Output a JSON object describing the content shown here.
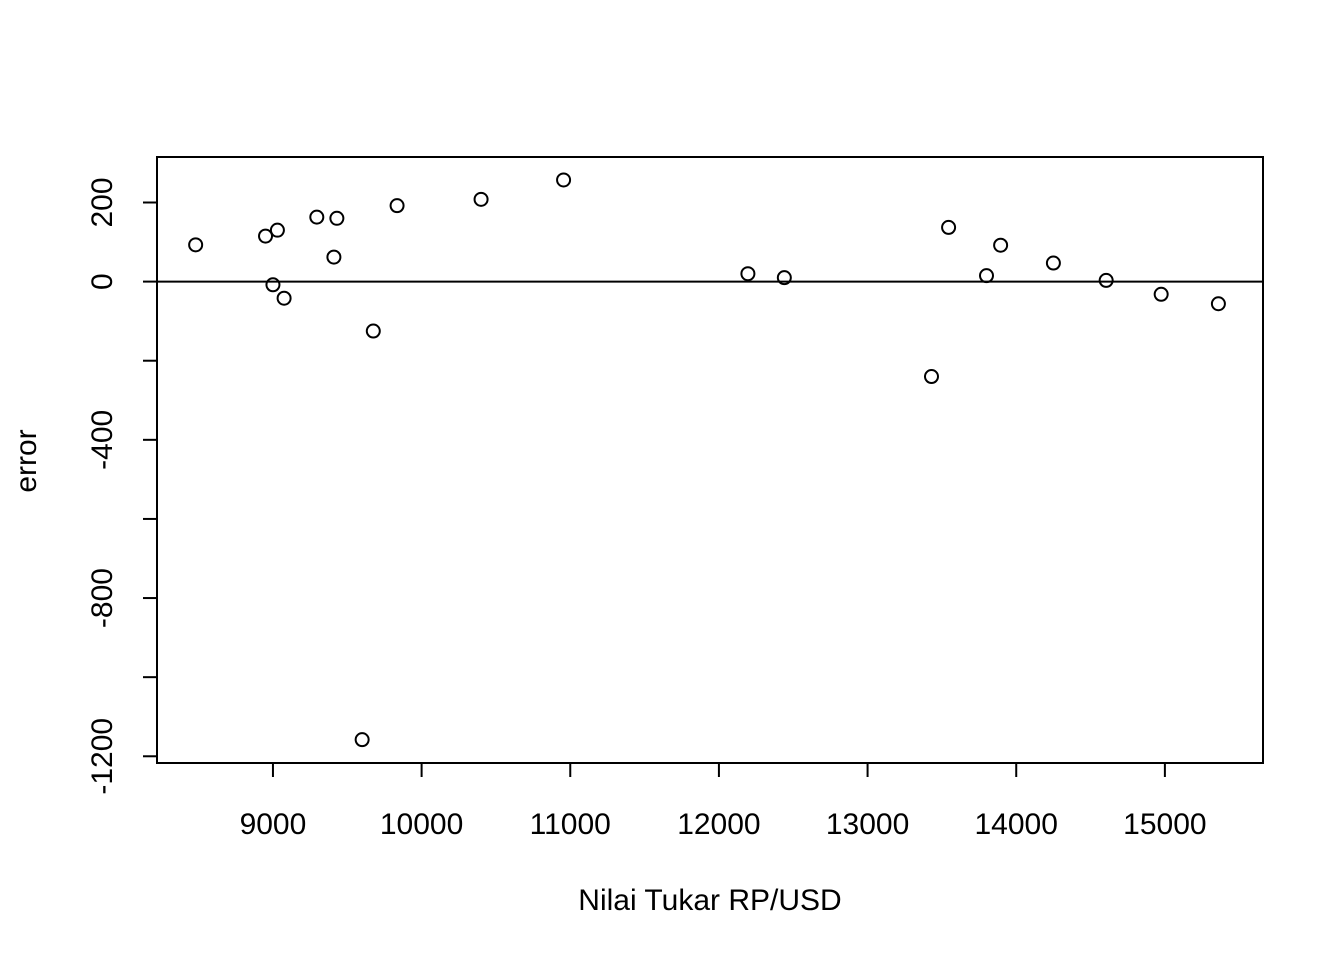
{
  "chart_data": {
    "type": "scatter",
    "title": "",
    "xlabel": "Nilai Tukar RP/USD",
    "ylabel": "error",
    "xlim": [
      8220,
      15660
    ],
    "ylim": [
      -1217,
      315
    ],
    "x_ticks": [
      9000,
      10000,
      11000,
      12000,
      13000,
      14000,
      15000
    ],
    "y_ticks": [
      -1200,
      -800,
      -400,
      0,
      200
    ],
    "y_minor_ticks": [
      -1000,
      -600,
      -200
    ],
    "reference_line": {
      "y": 0
    },
    "grid": false,
    "legend": "none",
    "marker": "open-circle",
    "colors": {
      "points": "#000000",
      "axes": "#000000",
      "background": "#ffffff"
    },
    "points": [
      {
        "x": 8480,
        "y": 93
      },
      {
        "x": 8950,
        "y": 115
      },
      {
        "x": 9000,
        "y": -8
      },
      {
        "x": 9030,
        "y": 130
      },
      {
        "x": 9075,
        "y": -42
      },
      {
        "x": 9295,
        "y": 163
      },
      {
        "x": 9410,
        "y": 62
      },
      {
        "x": 9430,
        "y": 160
      },
      {
        "x": 9600,
        "y": -1158
      },
      {
        "x": 9675,
        "y": -125
      },
      {
        "x": 9835,
        "y": 192
      },
      {
        "x": 10400,
        "y": 208
      },
      {
        "x": 10955,
        "y": 257
      },
      {
        "x": 12195,
        "y": 20
      },
      {
        "x": 12440,
        "y": 10
      },
      {
        "x": 13430,
        "y": -240
      },
      {
        "x": 13545,
        "y": 137
      },
      {
        "x": 13800,
        "y": 15
      },
      {
        "x": 13895,
        "y": 92
      },
      {
        "x": 14250,
        "y": 47
      },
      {
        "x": 14605,
        "y": 3
      },
      {
        "x": 14975,
        "y": -32
      },
      {
        "x": 15360,
        "y": -56
      }
    ]
  }
}
